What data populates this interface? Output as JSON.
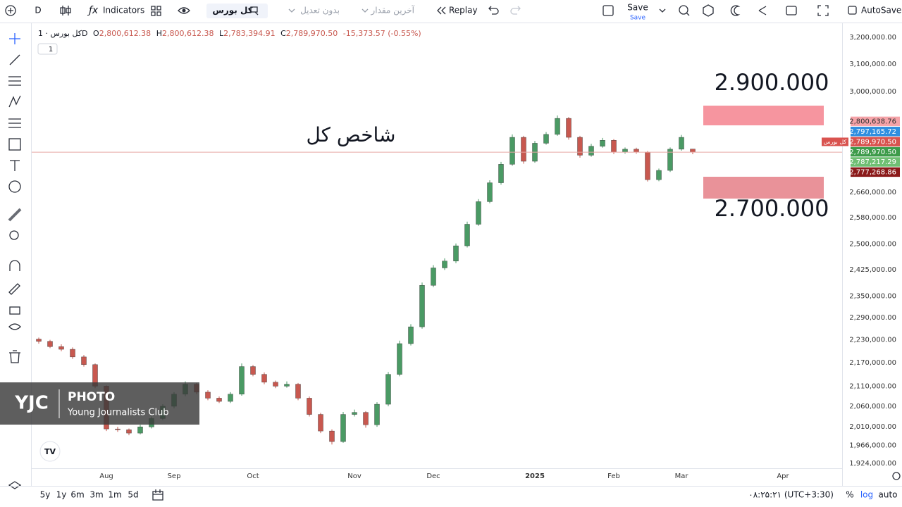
{
  "toolbar": {
    "interval": "D",
    "indicators": "Indicators",
    "symbol": "کل بورس",
    "adjust": "بدون تعدیل",
    "price_type": "آخرین مقدار",
    "replay": "Replay",
    "save": "Save",
    "save_sub": "Save",
    "autosave": "AutoSave"
  },
  "legend": {
    "symbol": "کل بورس · 1D",
    "fields": [
      {
        "key": "O",
        "text": "2,800,612.38"
      },
      {
        "key": "H",
        "text": "2,800,612.38"
      },
      {
        "key": "L",
        "text": "2,783,394.91"
      },
      {
        "key": "C",
        "text": "2,789,970.50"
      }
    ],
    "change": "-15,373.57 (-0.55%)",
    "badge": "1"
  },
  "annotations": {
    "title": "شاخص کل",
    "upper": "2.900.000",
    "lower": "2.700.000"
  },
  "chart_data": {
    "type": "candlestick",
    "log": true,
    "grid": false,
    "up_color": "#4a9a64",
    "down_color": "#c8584f",
    "categories": [
      null,
      null,
      null,
      null,
      null,
      null,
      "Aug",
      null,
      null,
      null,
      null,
      null,
      "Sep",
      null,
      null,
      null,
      null,
      null,
      null,
      "Oct",
      null,
      null,
      null,
      null,
      null,
      null,
      null,
      null,
      "Nov",
      null,
      null,
      null,
      null,
      null,
      null,
      "Dec",
      null,
      null,
      null,
      null,
      null,
      null,
      null,
      null,
      "2025",
      null,
      null,
      null,
      null,
      null,
      null,
      "Feb",
      null,
      null,
      null,
      null,
      null,
      "Mar",
      null,
      null,
      null,
      null,
      null,
      null,
      null,
      null,
      "Apr",
      null,
      null,
      null,
      null,
      null
    ],
    "candles": [
      [
        2232000,
        2236000,
        2220000,
        2226000
      ],
      [
        2226000,
        2230000,
        2208000,
        2212000
      ],
      [
        2212000,
        2218000,
        2200000,
        2205000
      ],
      [
        2205000,
        2210000,
        2180000,
        2185000
      ],
      [
        2185000,
        2190000,
        2160000,
        2165000
      ],
      [
        2165000,
        2168000,
        2105000,
        2110000
      ],
      [
        2110000,
        2112000,
        2000000,
        2005000
      ],
      [
        2005000,
        2010000,
        1998000,
        2003000
      ],
      [
        2003000,
        2006000,
        1990000,
        1995000
      ],
      [
        1995000,
        2015000,
        1992000,
        2010000
      ],
      [
        2010000,
        2035000,
        2006000,
        2030000
      ],
      [
        2030000,
        2065000,
        2026000,
        2060000
      ],
      [
        2060000,
        2095000,
        2055000,
        2090000
      ],
      [
        2090000,
        2122000,
        2085000,
        2115000
      ],
      [
        2115000,
        2118000,
        2090000,
        2095000
      ],
      [
        2095000,
        2100000,
        2075000,
        2080000
      ],
      [
        2080000,
        2084000,
        2068000,
        2072000
      ],
      [
        2072000,
        2095000,
        2068000,
        2090000
      ],
      [
        2090000,
        2168000,
        2086000,
        2160000
      ],
      [
        2160000,
        2164000,
        2135000,
        2140000
      ],
      [
        2140000,
        2145000,
        2115000,
        2120000
      ],
      [
        2120000,
        2124000,
        2105000,
        2110000
      ],
      [
        2110000,
        2122000,
        2106000,
        2115000
      ],
      [
        2115000,
        2118000,
        2075000,
        2080000
      ],
      [
        2080000,
        2084000,
        2035000,
        2040000
      ],
      [
        2040000,
        2044000,
        1995000,
        2000000
      ],
      [
        2000000,
        2004000,
        1968000,
        1975000
      ],
      [
        1975000,
        2046000,
        1972000,
        2040000
      ],
      [
        2040000,
        2052000,
        2035000,
        2045000
      ],
      [
        2045000,
        2048000,
        2008000,
        2015000
      ],
      [
        2015000,
        2070000,
        2010000,
        2065000
      ],
      [
        2065000,
        2146000,
        2060000,
        2140000
      ],
      [
        2140000,
        2228000,
        2135000,
        2220000
      ],
      [
        2220000,
        2272000,
        2215000,
        2265000
      ],
      [
        2265000,
        2388000,
        2260000,
        2380000
      ],
      [
        2380000,
        2438000,
        2375000,
        2430000
      ],
      [
        2430000,
        2458000,
        2424000,
        2450000
      ],
      [
        2450000,
        2502000,
        2444000,
        2495000
      ],
      [
        2495000,
        2568000,
        2490000,
        2560000
      ],
      [
        2560000,
        2638000,
        2555000,
        2630000
      ],
      [
        2630000,
        2698000,
        2625000,
        2690000
      ],
      [
        2690000,
        2758000,
        2684000,
        2750000
      ],
      [
        2750000,
        2850000,
        2745000,
        2840000
      ],
      [
        2840000,
        2845000,
        2752000,
        2760000
      ],
      [
        2760000,
        2828000,
        2755000,
        2820000
      ],
      [
        2820000,
        2858000,
        2815000,
        2850000
      ],
      [
        2850000,
        2915000,
        2845000,
        2905000
      ],
      [
        2905000,
        2910000,
        2832000,
        2840000
      ],
      [
        2840000,
        2845000,
        2772000,
        2780000
      ],
      [
        2780000,
        2818000,
        2775000,
        2810000
      ],
      [
        2810000,
        2838000,
        2805000,
        2830000
      ],
      [
        2830000,
        2834000,
        2784000,
        2790000
      ],
      [
        2790000,
        2806000,
        2785000,
        2800000
      ],
      [
        2800000,
        2805000,
        2785000,
        2790000
      ],
      [
        2790000,
        2794000,
        2694000,
        2700000
      ],
      [
        2700000,
        2736000,
        2695000,
        2730000
      ],
      [
        2730000,
        2806000,
        2725000,
        2800000
      ],
      [
        2800000,
        2848000,
        2795000,
        2840000
      ],
      [
        2800612.38,
        2800612.38,
        2783394.91,
        2789970.5
      ],
      null,
      null,
      null,
      null,
      null,
      null,
      null,
      null,
      null,
      null,
      null,
      null,
      null
    ],
    "ylim": [
      1913000,
      3249000
    ],
    "yticks": [
      {
        "value": 3200000,
        "label": "3,200,000.00"
      },
      {
        "value": 3100000,
        "label": "3,100,000.00"
      },
      {
        "value": 3000000,
        "label": "3,000,000.00"
      },
      {
        "value": 2660000,
        "label": "2,660,000.00"
      },
      {
        "value": 2580000,
        "label": "2,580,000.00"
      },
      {
        "value": 2500000,
        "label": "2,500,000.00"
      },
      {
        "value": 2425000,
        "label": "2,425,000.00"
      },
      {
        "value": 2350000,
        "label": "2,350,000.00"
      },
      {
        "value": 2290000,
        "label": "2,290,000.00"
      },
      {
        "value": 2230000,
        "label": "2,230,000.00"
      },
      {
        "value": 2170000,
        "label": "2,170,000.00"
      },
      {
        "value": 2110000,
        "label": "2,110,000.00"
      },
      {
        "value": 2060000,
        "label": "2,060,000.00"
      },
      {
        "value": 2010000,
        "label": "2,010,000.00"
      },
      {
        "value": 1966000,
        "label": "1,966,000.00"
      },
      {
        "value": 1924000,
        "label": "1,924,000.00"
      }
    ],
    "price_labels": [
      {
        "value": 2800638.76,
        "label": "2,800,638.76",
        "color": "#f5a3a8"
      },
      {
        "value": 2797165.72,
        "label": "2,797,165.72",
        "color": "#2f8fe0"
      },
      {
        "value": 2789970.5,
        "label": "2,789,970.50",
        "color": "#d9534f",
        "tag": "کل بورس"
      },
      {
        "value": 2789970.5,
        "label": "2,789,970.50",
        "color": "#3d9b4a"
      },
      {
        "value": 2787217.29,
        "label": "2,787,217.29",
        "color": "#6fbf73"
      },
      {
        "value": 2777268.86,
        "label": "2,777,268.86",
        "color": "#8b1a1a"
      }
    ]
  },
  "footer": {
    "ranges": [
      "5y",
      "1y",
      "6m",
      "3m",
      "1m",
      "5d"
    ],
    "time": "۰۸:۲۵:۲۱ (UTC+3:30)",
    "percent": "%",
    "log": "log",
    "auto": "auto"
  },
  "watermark": {
    "brand": "YJC",
    "kind": "PHOTO",
    "name": "Young Journalists Club"
  }
}
